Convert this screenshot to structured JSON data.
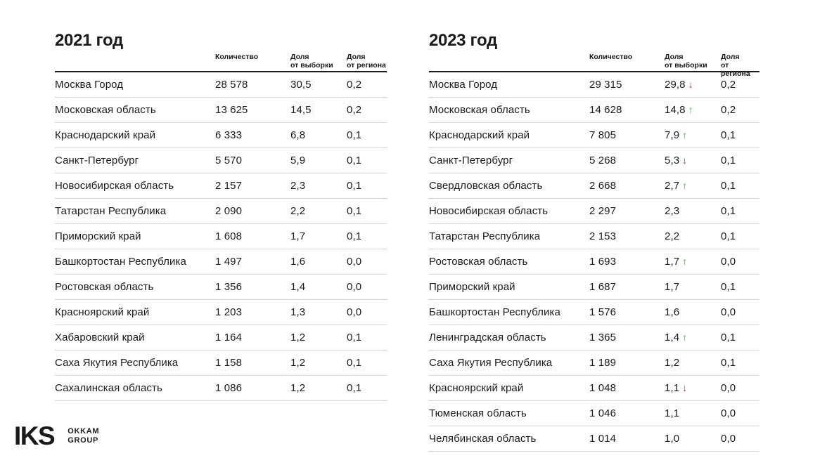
{
  "colors": {
    "up_arrow": "#1ec826",
    "down_arrow": "#ee2024",
    "text": "#1a1a1a",
    "row_divider": "#d9d9d9",
    "header_rule": "#1a1a1a",
    "background": "#ffffff"
  },
  "glyphs": {
    "up_arrow": "↑",
    "down_arrow": "↓"
  },
  "logo": {
    "brand": "IKS",
    "group": [
      "OKKAM",
      "GROUP"
    ]
  },
  "chart_data": [
    {
      "type": "table",
      "title": "2021 год",
      "columns": {
        "region": "",
        "quantity": "Количество",
        "share_sample": [
          "Доля",
          "от выборки"
        ],
        "share_region": [
          "Доля",
          "от региона"
        ]
      },
      "rows": [
        {
          "region": "Москва Город",
          "qty": "28 578",
          "share": "30,5",
          "trend": "",
          "region_share": "0,2"
        },
        {
          "region": "Московская область",
          "qty": "13 625",
          "share": "14,5",
          "trend": "",
          "region_share": "0,2"
        },
        {
          "region": "Краснодарский край",
          "qty": "6 333",
          "share": "6,8",
          "trend": "",
          "region_share": "0,1"
        },
        {
          "region": "Санкт-Петербург",
          "qty": "5 570",
          "share": "5,9",
          "trend": "",
          "region_share": "0,1"
        },
        {
          "region": "Новосибирская область",
          "qty": "2 157",
          "share": "2,3",
          "trend": "",
          "region_share": "0,1"
        },
        {
          "region": "Татарстан Республика",
          "qty": "2 090",
          "share": "2,2",
          "trend": "",
          "region_share": "0,1"
        },
        {
          "region": "Приморский край",
          "qty": "1 608",
          "share": "1,7",
          "trend": "",
          "region_share": "0,1"
        },
        {
          "region": "Башкортостан Республика",
          "qty": "1 497",
          "share": "1,6",
          "trend": "",
          "region_share": "0,0"
        },
        {
          "region": "Ростовская область",
          "qty": "1 356",
          "share": "1,4",
          "trend": "",
          "region_share": "0,0"
        },
        {
          "region": "Красноярский край",
          "qty": "1 203",
          "share": "1,3",
          "trend": "",
          "region_share": "0,0"
        },
        {
          "region": "Хабаровский край",
          "qty": "1 164",
          "share": "1,2",
          "trend": "",
          "region_share": "0,1"
        },
        {
          "region": "Саха Якутия Республика",
          "qty": "1 158",
          "share": "1,2",
          "trend": "",
          "region_share": "0,1"
        },
        {
          "region": "Сахалинская область",
          "qty": "1 086",
          "share": "1,2",
          "trend": "",
          "region_share": "0,1"
        }
      ]
    },
    {
      "type": "table",
      "title": "2023 год",
      "columns": {
        "region": "",
        "quantity": "Количество",
        "share_sample": [
          "Доля",
          "от выборки"
        ],
        "share_region": [
          "Доля",
          "от региона"
        ]
      },
      "rows": [
        {
          "region": "Москва Город",
          "qty": "29 315",
          "share": "29,8",
          "trend": "down",
          "region_share": "0,2"
        },
        {
          "region": "Московская область",
          "qty": "14 628",
          "share": "14,8",
          "trend": "up",
          "region_share": "0,2"
        },
        {
          "region": "Краснодарский край",
          "qty": "7 805",
          "share": "7,9",
          "trend": "up",
          "region_share": "0,1"
        },
        {
          "region": "Санкт-Петербург",
          "qty": "5 268",
          "share": "5,3",
          "trend": "down",
          "region_share": "0,1"
        },
        {
          "region": "Свердловская область",
          "qty": "2 668",
          "share": "2,7",
          "trend": "up",
          "region_share": "0,1"
        },
        {
          "region": "Новосибирская область",
          "qty": "2 297",
          "share": "2,3",
          "trend": "",
          "region_share": "0,1"
        },
        {
          "region": "Татарстан Республика",
          "qty": "2 153",
          "share": "2,2",
          "trend": "",
          "region_share": "0,1"
        },
        {
          "region": "Ростовская область",
          "qty": "1 693",
          "share": "1,7",
          "trend": "up",
          "region_share": "0,0"
        },
        {
          "region": "Приморский край",
          "qty": "1 687",
          "share": "1,7",
          "trend": "",
          "region_share": "0,1"
        },
        {
          "region": "Башкортостан Республика",
          "qty": "1 576",
          "share": "1,6",
          "trend": "",
          "region_share": "0,0"
        },
        {
          "region": "Ленинградская область",
          "qty": "1 365",
          "share": "1,4",
          "trend": "up",
          "region_share": "0,1"
        },
        {
          "region": "Саха Якутия Республика",
          "qty": "1 189",
          "share": "1,2",
          "trend": "",
          "region_share": "0,1"
        },
        {
          "region": "Красноярский край",
          "qty": "1 048",
          "share": "1,1",
          "trend": "down",
          "region_share": "0,0"
        },
        {
          "region": "Тюменская область",
          "qty": "1 046",
          "share": "1,1",
          "trend": "",
          "region_share": "0,0"
        },
        {
          "region": "Челябинская область",
          "qty": "1 014",
          "share": "1,0",
          "trend": "",
          "region_share": "0,0"
        }
      ]
    }
  ]
}
